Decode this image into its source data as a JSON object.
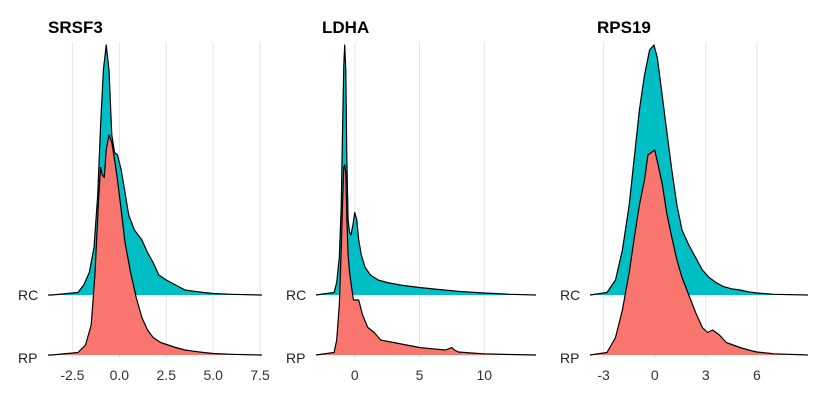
{
  "chart_data": [
    {
      "type": "area",
      "title": "SRSF3",
      "xlim": [
        -3.8,
        7.6
      ],
      "xticks": [
        -2.5,
        0.0,
        2.5,
        5.0,
        7.5
      ],
      "xtick_labels": [
        "-2.5",
        "0.0",
        "2.5",
        "5.0",
        "7.5"
      ],
      "categories": [
        "RP",
        "RC"
      ],
      "grid": "vertical",
      "series": [
        {
          "name": "RC",
          "color": "#00BFC4",
          "x": [
            -3.6,
            -2.2,
            -1.9,
            -1.6,
            -1.35,
            -1.15,
            -1.0,
            -0.85,
            -0.7,
            -0.55,
            -0.4,
            -0.25,
            -0.1,
            0.1,
            0.3,
            0.5,
            0.8,
            1.2,
            1.5,
            1.8,
            2.1,
            2.5,
            3.0,
            3.5,
            4.0,
            4.5,
            5.0,
            6.0,
            7.5
          ],
          "y": [
            0.0,
            0.01,
            0.04,
            0.09,
            0.19,
            0.4,
            0.68,
            0.9,
            1.0,
            0.9,
            0.64,
            0.57,
            0.56,
            0.5,
            0.41,
            0.32,
            0.26,
            0.22,
            0.17,
            0.13,
            0.08,
            0.06,
            0.04,
            0.02,
            0.015,
            0.01,
            0.006,
            0.003,
            0.0
          ]
        },
        {
          "name": "RP",
          "color": "#F8766D",
          "x": [
            -3.6,
            -2.2,
            -1.8,
            -1.5,
            -1.3,
            -1.1,
            -1.0,
            -0.9,
            -0.8,
            -0.7,
            -0.55,
            -0.4,
            -0.25,
            -0.1,
            0.1,
            0.3,
            0.6,
            0.9,
            1.2,
            1.5,
            1.8,
            2.2,
            2.6,
            3.0,
            3.5,
            4.0,
            4.5,
            5.0,
            6.0,
            7.5
          ],
          "y": [
            0.0,
            0.01,
            0.04,
            0.12,
            0.32,
            0.63,
            0.75,
            0.72,
            0.71,
            0.82,
            0.88,
            0.85,
            0.78,
            0.7,
            0.58,
            0.45,
            0.33,
            0.23,
            0.15,
            0.1,
            0.07,
            0.05,
            0.04,
            0.03,
            0.02,
            0.015,
            0.01,
            0.006,
            0.003,
            0.0
          ]
        }
      ]
    },
    {
      "type": "area",
      "title": "LDHA",
      "xlim": [
        -3.0,
        14.0
      ],
      "xticks": [
        0,
        5,
        10
      ],
      "xtick_labels": [
        "0",
        "5",
        "10"
      ],
      "categories": [
        "RP",
        "RC"
      ],
      "grid": "vertical",
      "series": [
        {
          "name": "RC",
          "color": "#00BFC4",
          "x": [
            -3.0,
            -1.6,
            -1.4,
            -1.2,
            -1.05,
            -0.95,
            -0.85,
            -0.78,
            -0.7,
            -0.62,
            -0.52,
            -0.4,
            -0.3,
            -0.15,
            0.0,
            0.15,
            0.3,
            0.5,
            0.8,
            1.2,
            1.8,
            2.5,
            3.5,
            5.0,
            6.5,
            8.0,
            10.0,
            12.0,
            14.0
          ],
          "y": [
            0.0,
            0.01,
            0.05,
            0.15,
            0.35,
            0.65,
            0.92,
            1.0,
            0.9,
            0.55,
            0.3,
            0.25,
            0.24,
            0.28,
            0.33,
            0.3,
            0.22,
            0.16,
            0.11,
            0.08,
            0.06,
            0.05,
            0.04,
            0.03,
            0.022,
            0.015,
            0.008,
            0.003,
            0.0
          ]
        },
        {
          "name": "RP",
          "color": "#F8766D",
          "x": [
            -3.0,
            -1.6,
            -1.4,
            -1.2,
            -1.05,
            -0.95,
            -0.85,
            -0.78,
            -0.7,
            -0.62,
            -0.52,
            -0.4,
            -0.25,
            -0.1,
            0.1,
            0.3,
            0.6,
            1.0,
            1.5,
            2.0,
            3.0,
            4.0,
            5.0,
            6.0,
            7.0,
            7.5,
            7.7,
            8.0,
            9.0,
            10.0,
            12.0,
            14.0
          ],
          "y": [
            0.0,
            0.01,
            0.06,
            0.2,
            0.42,
            0.6,
            0.75,
            0.76,
            0.73,
            0.55,
            0.4,
            0.33,
            0.27,
            0.22,
            0.22,
            0.22,
            0.16,
            0.11,
            0.09,
            0.06,
            0.05,
            0.04,
            0.03,
            0.025,
            0.02,
            0.03,
            0.02,
            0.012,
            0.008,
            0.005,
            0.002,
            0.0
          ]
        }
      ]
    },
    {
      "type": "area",
      "title": "RPS19",
      "xlim": [
        -3.8,
        9.0
      ],
      "xticks": [
        -3,
        0,
        3,
        6
      ],
      "xtick_labels": [
        "-3",
        "0",
        "3",
        "6"
      ],
      "categories": [
        "RP",
        "RC"
      ],
      "grid": "vertical",
      "series": [
        {
          "name": "RC",
          "color": "#00BFC4",
          "x": [
            -3.8,
            -2.8,
            -2.3,
            -1.9,
            -1.5,
            -1.2,
            -0.9,
            -0.6,
            -0.3,
            -0.05,
            0.15,
            0.4,
            0.7,
            1.0,
            1.3,
            1.6,
            2.0,
            2.4,
            2.8,
            3.2,
            3.6,
            4.0,
            4.5,
            5.0,
            5.5,
            6.0,
            7.0,
            9.0
          ],
          "y": [
            0.0,
            0.01,
            0.06,
            0.18,
            0.36,
            0.55,
            0.74,
            0.88,
            0.98,
            1.0,
            0.95,
            0.82,
            0.66,
            0.5,
            0.36,
            0.26,
            0.2,
            0.15,
            0.1,
            0.07,
            0.05,
            0.035,
            0.025,
            0.02,
            0.013,
            0.008,
            0.003,
            0.0
          ]
        },
        {
          "name": "RP",
          "color": "#F8766D",
          "x": [
            -3.8,
            -2.8,
            -2.3,
            -1.9,
            -1.5,
            -1.2,
            -0.9,
            -0.6,
            -0.4,
            -0.2,
            0.0,
            0.2,
            0.45,
            0.7,
            1.0,
            1.3,
            1.6,
            2.0,
            2.4,
            2.8,
            3.1,
            3.4,
            3.8,
            4.2,
            4.6,
            5.0,
            5.5,
            6.0,
            7.0,
            9.0
          ],
          "y": [
            0.0,
            0.01,
            0.07,
            0.18,
            0.33,
            0.47,
            0.6,
            0.7,
            0.8,
            0.81,
            0.82,
            0.76,
            0.68,
            0.57,
            0.47,
            0.38,
            0.31,
            0.24,
            0.17,
            0.11,
            0.09,
            0.1,
            0.08,
            0.05,
            0.04,
            0.03,
            0.02,
            0.012,
            0.005,
            0.0
          ]
        }
      ]
    }
  ]
}
